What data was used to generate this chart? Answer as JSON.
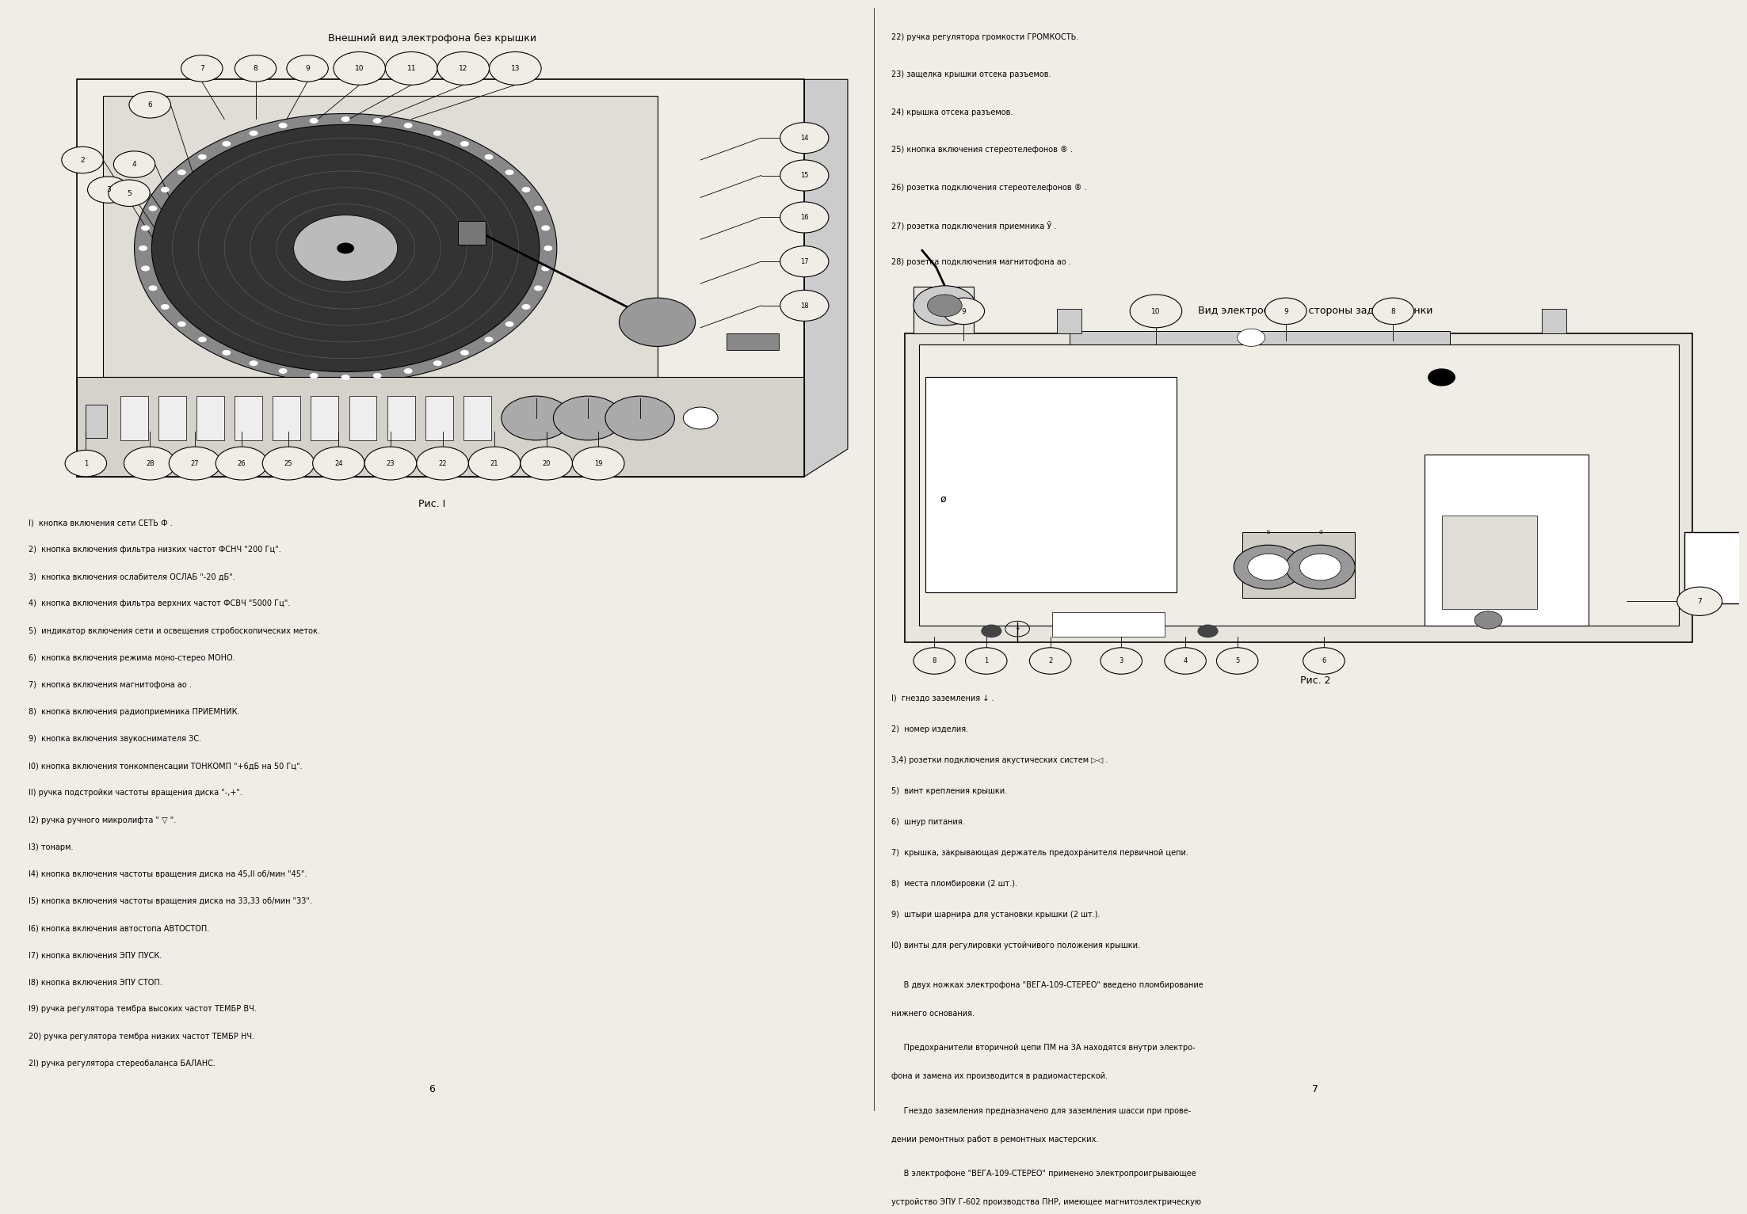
{
  "bg_color": "#f0ede6",
  "page_width": 21.91,
  "page_height": 15.0,
  "left_title": "Внешний вид электрофона без крышки",
  "right_title": "Вид электрофона со стороны задней стенки",
  "fig1_caption": "Рис. I",
  "fig2_caption": "Рис. 2",
  "page_num_left": "6",
  "page_num_right": "7",
  "left_items": [
    "I)  кнопка включения сети СЕТЬ Ф .",
    "2)  кнопка включения фильтра низких частот ФСНЧ \"200 Гц\".",
    "3)  кнопка включения ослабителя ОСЛАБ \"-20 дБ\".",
    "4)  кнопка включения фильтра верхних частот ФСВЧ \"5000 Гц\".",
    "5)  индикатор включения сети и освещения стробоскопических меток.",
    "6)  кнопка включения режима моно-стерео МОНО.",
    "7)  кнопка включения магнитофона ао .",
    "8)  кнопка включения радиоприемника ПРИЕМНИК.",
    "9)  кнопка включения звукоснимателя ЗС.",
    "I0) кнопка включения тонкомпенсации ТОНКОМП \"+6дБ на 50 Гц\".",
    "II) ручка подстройки частоты вращения диска \"-,+\".",
    "I2) ручка ручного микролифта \" ▽ \".",
    "I3) тонарм.",
    "I4) кнопка включения частоты вращения диска на 45,II об/мин \"45\".",
    "I5) кнопка включения частоты вращения диска на 33,33 об/мин \"33\".",
    "I6) кнопка включения автостопа АВТОСТОП.",
    "I7) кнопка включения ЭПУ ПУСК.",
    "I8) кнопка включения ЭПУ СТОП.",
    "I9) ручка регулятора тембра высоких частот ТЕМБР ВЧ.",
    "20) ручка регулятора тембра низких частот ТЕМБР НЧ.",
    "2I) ручка регулятора стереобаланса БАЛАНС."
  ],
  "right_top_items": [
    "22) ручка регулятора громкости ГРОМКОСТЬ.",
    "23) защелка крышки отсека разъемов.",
    "24) крышка отсека разъемов.",
    "25) кнопка включения стереотелефонов ® .",
    "26) розетка подключения стереотелефонов ® .",
    "27) розетка подключения приемника Ў .",
    "28) розетка подключения магнитофона ао ."
  ],
  "right_bottom_items": [
    "I)  гнездо заземления ↓ .",
    "2)  номер изделия.",
    "3,4) розетки подключения акустических систем ▷◁ .",
    "5)  винт крепления крышки.",
    "6)  шнур питания.",
    "7)  крышка, закрывающая держатель предохранителя первичной цепи.",
    "8)  места пломбировки (2 шт.).",
    "9)  штыри шарнира для установки крышки (2 шт.).",
    "I0) винты для регулировки устойчивого положения крышки."
  ],
  "right_para1": "     В двух ножках электрофона \"ВЕГА-109-СТЕРЕО\" введено пломбирование\nнижнего основания.",
  "right_para2": "     Предохранители вторичной цепи ПМ на 3А находятся внутри электро-\nфона и замена их производится в радиомастерской.",
  "right_para3": "     Гнездо заземления предназначено для заземления шасси при прове-\nдении ремонтных работ в ремонтных мастерских.",
  "right_para4": "     В электрофоне \"ВЕГА-109-СТЕРЕО\" применено электропроигрывающее\nустройство ЭПУ Г-602 производства ПНР, имеющее магнитоэлектрическую"
}
